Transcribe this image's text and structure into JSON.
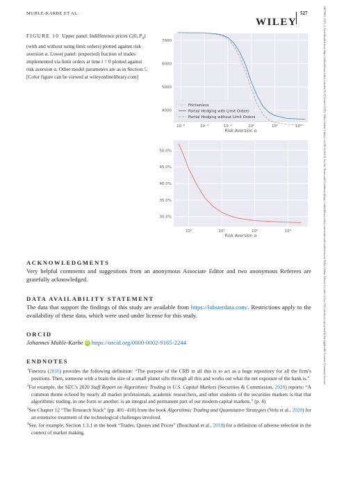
{
  "header": {
    "running_head": "MUHLE-KARBE ET AL.",
    "page_number": "527",
    "publisher": "WILEY"
  },
  "side_banner": "14679965, 2025, 2, Downloaded from https://onlinelibrary.wiley.com/doi/10.1111/mafi.12505, Wiley Online Library on [08/12/2025]. See the Terms and Conditions (https://onlinelibrary.wiley.com/terms-and-conditions) on Wiley Online Library for rules of use; OA articles are governed by the applicable Creative Commons License",
  "figure": {
    "label": "FIGURE 10",
    "caption_parts": [
      "Upper panel: Indifference prices ",
      "C(0, P",
      "0",
      ") (with and without using limit orders) plotted against risk aversion α. Lower panel: (expected) fraction of trades implemented via limit orders at time ",
      "t",
      " = 0 plotted against risk aversion α. Other model parameters are as in Section ",
      "5",
      ". [Color figure can be viewed at wileyonlinelibrary.com]"
    ]
  },
  "chart_data": [
    {
      "type": "line",
      "xscale": "log",
      "xlim_log10": [
        -6.6,
        4.8
      ],
      "ylim": [
        3500,
        7300
      ],
      "x_ticks_log10": [
        -6,
        -4,
        -2,
        0,
        2,
        4
      ],
      "x_tick_labels": [
        "10⁻⁶",
        "10⁻⁴",
        "10⁻²",
        "10⁰",
        "10²",
        "10⁴"
      ],
      "y_ticks": [
        4000,
        5000,
        6000,
        7000
      ],
      "y_tick_labels": [
        "4000",
        "5000",
        "6000",
        "7000"
      ],
      "xlabel": "Risk Aversion α",
      "ylabel": "",
      "grid": true,
      "legend_position": "bottom-left",
      "series": [
        {
          "name": "Frictionless",
          "color": "#d8d8d8",
          "style": "solid",
          "x_log10": [
            -6.6,
            4.8
          ],
          "y": [
            3500,
            3500
          ]
        },
        {
          "name": "Partial Hedging with Limit Orders",
          "color": "#4c8fc0",
          "style": "solid",
          "x_log10": [
            -6.3,
            -4,
            -3,
            -2.5,
            -2,
            -1.5,
            -1,
            -0.5,
            0,
            0.5,
            1,
            1.5,
            2,
            3,
            4.6
          ],
          "y": [
            7330,
            7320,
            7280,
            7230,
            7120,
            6900,
            6500,
            5950,
            5200,
            4600,
            4150,
            3900,
            3760,
            3640,
            3600
          ]
        },
        {
          "name": "Partial Hedging without Limit Orders",
          "color": "#a9a9a9",
          "style": "dashed",
          "x_log10": [
            -6.3,
            -4,
            -3,
            -2.5,
            -2,
            -1.5,
            -1,
            -0.5,
            0,
            0.5,
            1,
            1.5,
            2,
            3,
            4.6
          ],
          "y": [
            7330,
            7315,
            7260,
            7190,
            7050,
            6780,
            6300,
            5650,
            4900,
            4250,
            3800,
            3560,
            3460,
            3380,
            3350
          ]
        }
      ]
    },
    {
      "type": "line",
      "xscale": "log",
      "xlim_log10": [
        -0.45,
        3.6
      ],
      "ylim": [
        27,
        53
      ],
      "x_ticks_log10": [
        0,
        1,
        2,
        3
      ],
      "x_tick_labels": [
        "10⁰",
        "10¹",
        "10²",
        "10³"
      ],
      "y_ticks": [
        30,
        35,
        40,
        45,
        50
      ],
      "y_tick_labels": [
        "30.0%",
        "35.0%",
        "40.0%",
        "45.0%",
        "50.0%"
      ],
      "xlabel": "Risk Aversion α",
      "ylabel": "",
      "grid": true,
      "series": [
        {
          "name": "",
          "color": "#e8736a",
          "style": "solid",
          "x_log10": [
            -0.3,
            -0.15,
            0,
            0.25,
            0.5,
            0.75,
            1,
            1.25,
            1.5,
            2,
            2.5,
            3,
            3.4
          ],
          "y": [
            52,
            48.5,
            44.5,
            39.5,
            35.5,
            33,
            31.3,
            30.2,
            29.5,
            28.8,
            28.5,
            28.3,
            28.2
          ]
        }
      ]
    }
  ],
  "acknowledgments": {
    "title": "ACKNOWLEDGMENTS",
    "text": "Very helpful comments and suggestions from an anonymous Associate Editor and two anonymous Referees are gratefully acknowledged."
  },
  "data_availability": {
    "title": "DATA AVAILABILITY STATEMENT",
    "text_before": "The data that support the findings of this study are available from ",
    "link": "https://lobsterdata.com/",
    "text_after": ". Restrictions apply to the availability of these data, which were used under license for this study."
  },
  "orcid": {
    "title": "ORCID",
    "author": "Johannes Muhle-Karbe",
    "badge": "iD",
    "link": "https://orcid.org/0000-0002-9165-2244"
  },
  "endnotes": {
    "title": "ENDNOTES",
    "items": [
      {
        "num": "1",
        "parts": [
          {
            "t": "Finextra ("
          },
          {
            "t": "2016",
            "link": true
          },
          {
            "t": ") provides the following definition: “The purpose of the CRB in all this is to act as a huge repository for all the firm’s positions. Then, someone with a brain the size of a small planet sifts through all this and works out what the net exposure of the bank is.”"
          }
        ]
      },
      {
        "num": "2",
        "parts": [
          {
            "t": "For example, the SEC’s 2020 "
          },
          {
            "t": "Staff Report on Algorithmic Trading in U.S. Capital Markets",
            "italic": true
          },
          {
            "t": " (Securities & Commission, "
          },
          {
            "t": "2020",
            "link": true
          },
          {
            "t": ") reports: “A common theme echoed by nearly all market professionals, academic researchers, and other students of the securities markets is that that algorithmic trading, in one form or another, is an integral and permanent part of our modern capital markets.” (p. 4)"
          }
        ]
      },
      {
        "num": "3",
        "parts": [
          {
            "t": "See Chapter 12 “The Research Stack” (pp. 401–410) from the book "
          },
          {
            "t": "Algorithmic Trading and Quantitative Strategies",
            "italic": true
          },
          {
            "t": " (Velu et al., "
          },
          {
            "t": "2020",
            "link": true
          },
          {
            "t": ") for an extensive treatment of the technological challenges involved."
          }
        ]
      },
      {
        "num": "4",
        "parts": [
          {
            "t": "See, for example, Section 1.3.1 in the book “Trades, Quotes and Prices” (Bouchaud et al., "
          },
          {
            "t": "2018",
            "link": true
          },
          {
            "t": ") for a definition of adverse selection in the context of market making."
          }
        ]
      }
    ]
  },
  "colors": {
    "link": "#1b6fb5",
    "plot_bg": "#eaeaf2",
    "grid": "#ffffff",
    "text": "#231f20"
  }
}
